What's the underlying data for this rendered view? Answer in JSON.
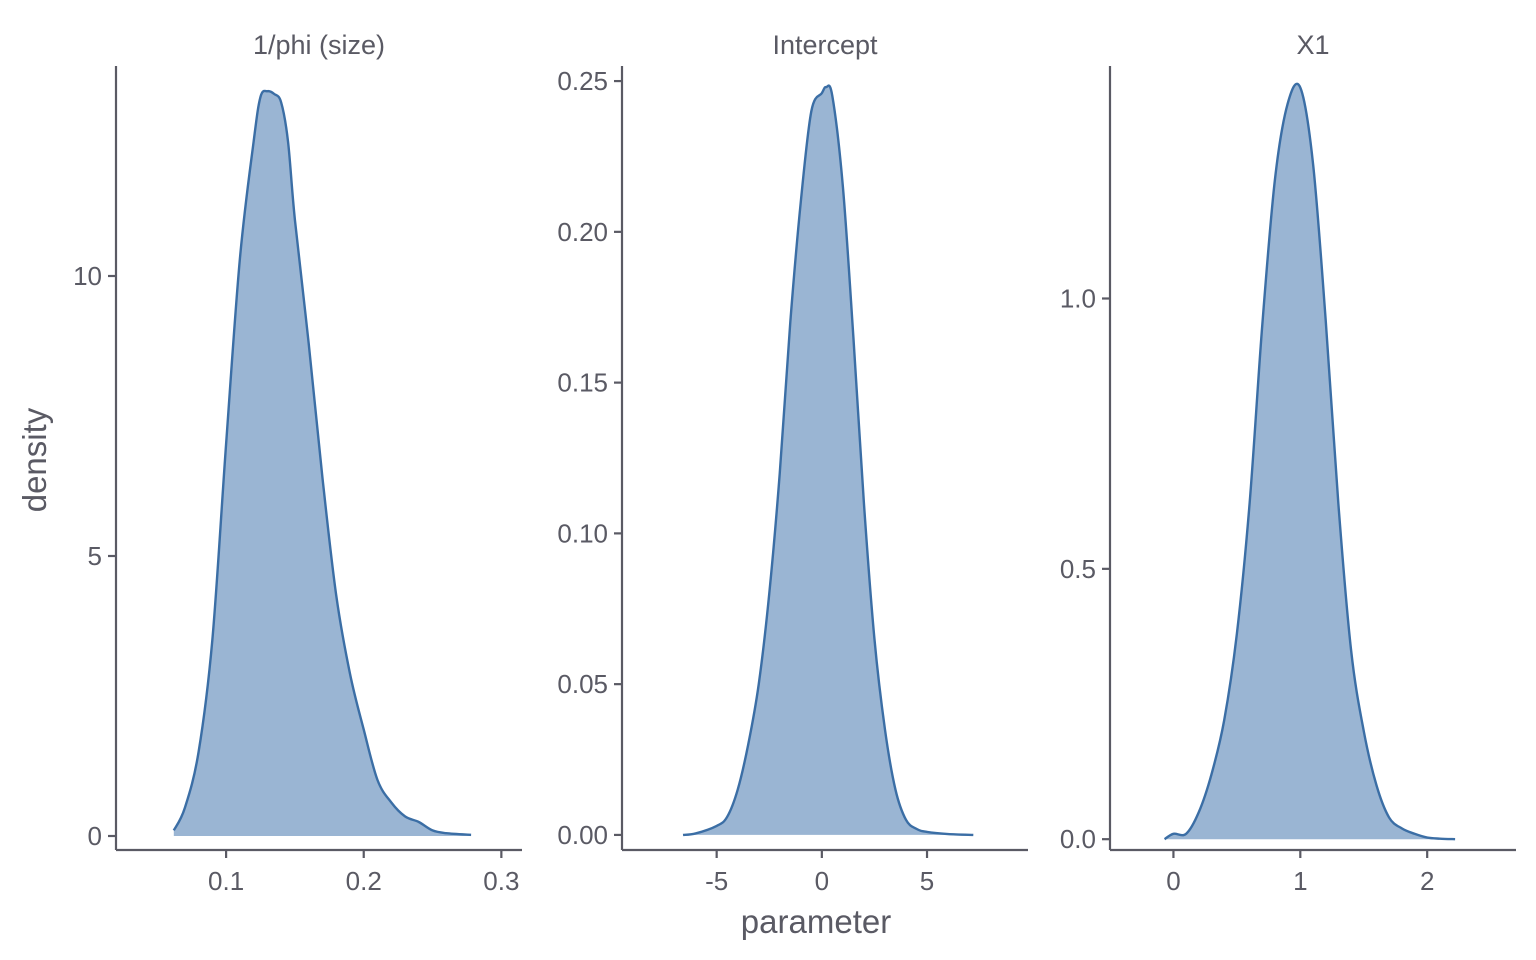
{
  "chart_data": {
    "type": "area",
    "xlabel": "parameter",
    "ylabel": "density",
    "colors": {
      "fill": "#9ab5d3",
      "line": "#3b6ea5",
      "axis": "#5a5a64"
    },
    "panels": [
      {
        "title": "1/phi (size)",
        "xlim": [
          0.02,
          0.315
        ],
        "ylim": [
          -0.25,
          13.75
        ],
        "xticks": [
          0.1,
          0.2,
          0.3
        ],
        "xtick_labels": [
          "0.1",
          "0.2",
          "0.3"
        ],
        "yticks": [
          0,
          5,
          10
        ],
        "ytick_labels": [
          "0",
          "5",
          "10"
        ],
        "x": [
          0.062,
          0.07,
          0.08,
          0.09,
          0.1,
          0.11,
          0.12,
          0.125,
          0.13,
          0.135,
          0.14,
          0.145,
          0.15,
          0.16,
          0.17,
          0.18,
          0.19,
          0.2,
          0.21,
          0.22,
          0.23,
          0.24,
          0.25,
          0.26,
          0.278
        ],
        "y": [
          0.1,
          0.5,
          1.5,
          3.5,
          7.0,
          10.3,
          12.4,
          13.2,
          13.3,
          13.25,
          13.1,
          12.4,
          11.0,
          8.8,
          6.4,
          4.3,
          2.9,
          1.9,
          1.0,
          0.6,
          0.35,
          0.25,
          0.1,
          0.05,
          0.02
        ]
      },
      {
        "title": "Intercept",
        "xlim": [
          -9.5,
          9.8
        ],
        "ylim": [
          -0.005,
          0.255
        ],
        "xticks": [
          -5,
          0,
          5
        ],
        "xtick_labels": [
          "-5",
          "0",
          "5"
        ],
        "yticks": [
          0.0,
          0.05,
          0.1,
          0.15,
          0.2,
          0.25
        ],
        "ytick_labels": [
          "0.00",
          "0.05",
          "0.10",
          "0.15",
          "0.20",
          "0.25"
        ],
        "x": [
          -6.6,
          -6.0,
          -5.0,
          -4.5,
          -4.0,
          -3.5,
          -3.0,
          -2.5,
          -2.0,
          -1.5,
          -1.0,
          -0.5,
          0.0,
          0.2,
          0.5,
          1.0,
          1.5,
          2.0,
          2.5,
          3.0,
          3.5,
          4.0,
          4.5,
          5.0,
          6.0,
          7.2
        ],
        "y": [
          0.0,
          0.0005,
          0.003,
          0.006,
          0.015,
          0.03,
          0.05,
          0.08,
          0.12,
          0.17,
          0.21,
          0.24,
          0.246,
          0.248,
          0.245,
          0.215,
          0.165,
          0.11,
          0.065,
          0.035,
          0.015,
          0.005,
          0.002,
          0.001,
          0.0003,
          0.0
        ]
      },
      {
        "title": "X1",
        "xlim": [
          -0.5,
          2.7
        ],
        "ylim": [
          -0.02,
          1.43
        ],
        "xticks": [
          0,
          1,
          2
        ],
        "xtick_labels": [
          "0",
          "1",
          "2"
        ],
        "yticks": [
          0.0,
          0.5,
          1.0
        ],
        "ytick_labels": [
          "0.0",
          "0.5",
          "1.0"
        ],
        "x": [
          -0.07,
          0.0,
          0.1,
          0.2,
          0.3,
          0.4,
          0.5,
          0.6,
          0.7,
          0.8,
          0.9,
          1.0,
          1.1,
          1.2,
          1.3,
          1.4,
          1.5,
          1.6,
          1.7,
          1.8,
          1.9,
          2.0,
          2.1,
          2.22
        ],
        "y": [
          0.0,
          0.01,
          0.01,
          0.05,
          0.12,
          0.22,
          0.38,
          0.62,
          0.95,
          1.22,
          1.36,
          1.39,
          1.25,
          0.96,
          0.62,
          0.35,
          0.2,
          0.1,
          0.04,
          0.02,
          0.01,
          0.003,
          0.001,
          0.0
        ]
      }
    ]
  }
}
